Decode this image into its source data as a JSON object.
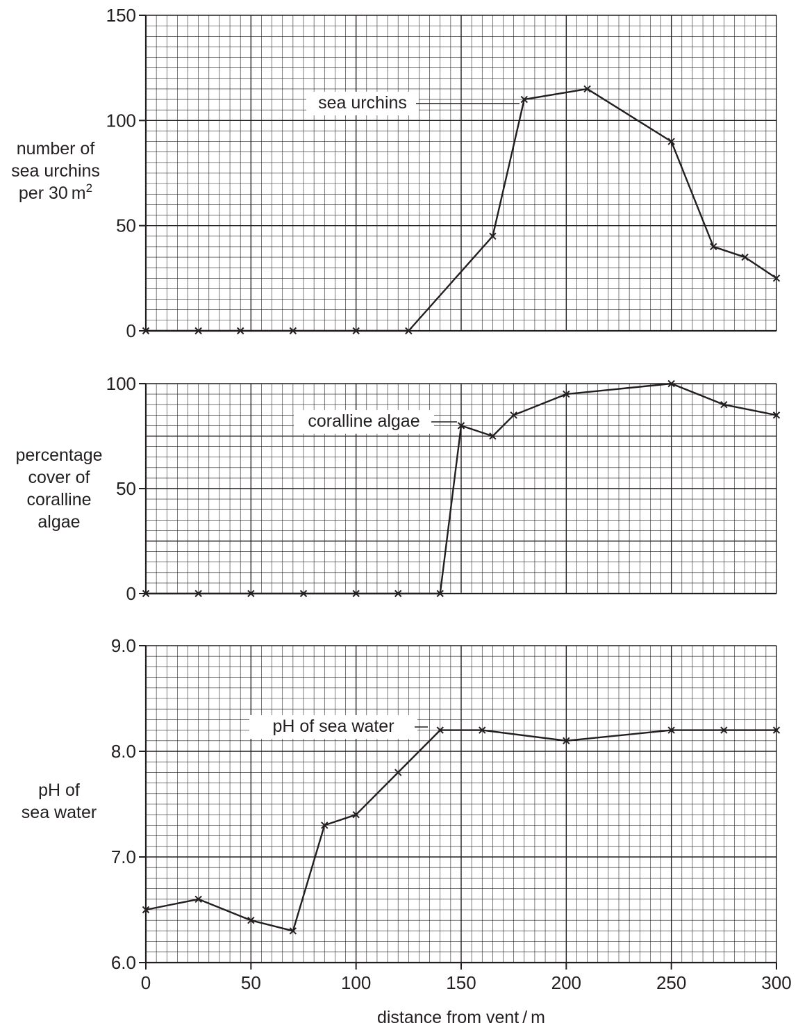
{
  "chart_data": [
    {
      "type": "line",
      "title": "",
      "ylabel_lines": [
        "number of",
        "sea urchins",
        "per 30 m"
      ],
      "ylabel_superscript": "2",
      "xlim": [
        0,
        300
      ],
      "ylim": [
        0,
        150
      ],
      "y_ticks": [
        0,
        50,
        100,
        150
      ],
      "y_tick_labels": [
        "0",
        "50",
        "100",
        "150"
      ],
      "grid": true,
      "series": [
        {
          "name": "sea urchins",
          "x": [
            0,
            25,
            45,
            70,
            100,
            125,
            165,
            180,
            210,
            250,
            270,
            285,
            300
          ],
          "y": [
            0,
            0,
            0,
            0,
            0,
            0,
            45,
            110,
            115,
            90,
            40,
            35,
            25
          ]
        }
      ]
    },
    {
      "type": "line",
      "title": "",
      "ylabel_lines": [
        "percentage",
        "cover of",
        "coralline",
        "algae"
      ],
      "xlim": [
        0,
        300
      ],
      "ylim": [
        0,
        100
      ],
      "y_ticks": [
        0,
        50,
        100
      ],
      "y_tick_labels": [
        "0",
        "50",
        "100"
      ],
      "grid": true,
      "series": [
        {
          "name": "coralline algae",
          "x": [
            0,
            25,
            50,
            75,
            100,
            120,
            140,
            150,
            165,
            175,
            200,
            250,
            275,
            300
          ],
          "y": [
            0,
            0,
            0,
            0,
            0,
            0,
            0,
            80,
            75,
            85,
            95,
            100,
            90,
            85
          ]
        }
      ]
    },
    {
      "type": "line",
      "title": "",
      "ylabel_lines": [
        "pH of",
        "sea water"
      ],
      "xlabel": "distance from vent / m",
      "xlim": [
        0,
        300
      ],
      "ylim": [
        6.0,
        9.0
      ],
      "x_ticks": [
        0,
        50,
        100,
        150,
        200,
        250,
        300
      ],
      "x_tick_labels": [
        "0",
        "50",
        "100",
        "150",
        "200",
        "250",
        "300"
      ],
      "y_ticks": [
        6.0,
        7.0,
        8.0,
        9.0
      ],
      "y_tick_labels": [
        "6.0",
        "7.0",
        "8.0",
        "9.0"
      ],
      "grid": true,
      "series": [
        {
          "name": "pH of sea water",
          "x": [
            0,
            25,
            50,
            70,
            85,
            100,
            120,
            140,
            160,
            200,
            250,
            275,
            300
          ],
          "y": [
            6.5,
            6.6,
            6.4,
            6.3,
            7.3,
            7.4,
            7.8,
            8.2,
            8.2,
            8.1,
            8.2,
            8.2,
            8.2
          ]
        }
      ]
    }
  ],
  "colors": {
    "ink": "#231f20",
    "background": "#ffffff"
  }
}
